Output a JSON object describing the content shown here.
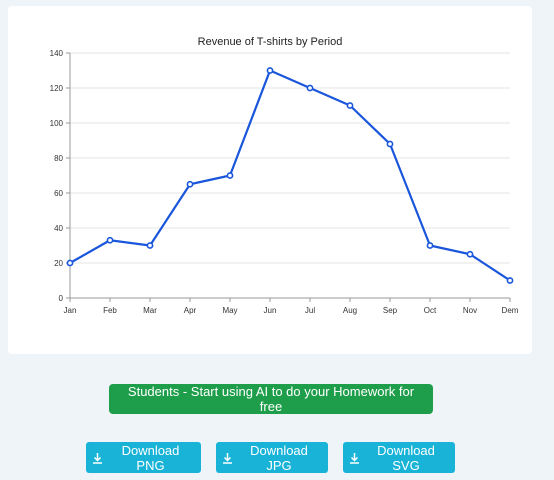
{
  "chart_data": {
    "type": "line",
    "title": "Revenue of T-shirts by Period",
    "xlabel": "",
    "ylabel": "",
    "categories": [
      "Jan",
      "Feb",
      "Mar",
      "Apr",
      "May",
      "Jun",
      "Jul",
      "Aug",
      "Sep",
      "Oct",
      "Nov",
      "Dem"
    ],
    "values": [
      20,
      33,
      30,
      65,
      70,
      130,
      120,
      110,
      88,
      30,
      25,
      10
    ],
    "ylim": [
      0,
      140
    ],
    "yticks": [
      0,
      20,
      40,
      60,
      80,
      100,
      120,
      140
    ],
    "grid": true,
    "legend": "none",
    "line_color": "#1a56db"
  },
  "cta": {
    "label": "Students - Start using AI to do your Homework for free",
    "color": "#1e9e4a"
  },
  "downloads": {
    "png_label": "Download PNG",
    "jpg_label": "Download JPG",
    "svg_label": "Download SVG",
    "icon": "download-icon",
    "color": "#19b3d8"
  }
}
